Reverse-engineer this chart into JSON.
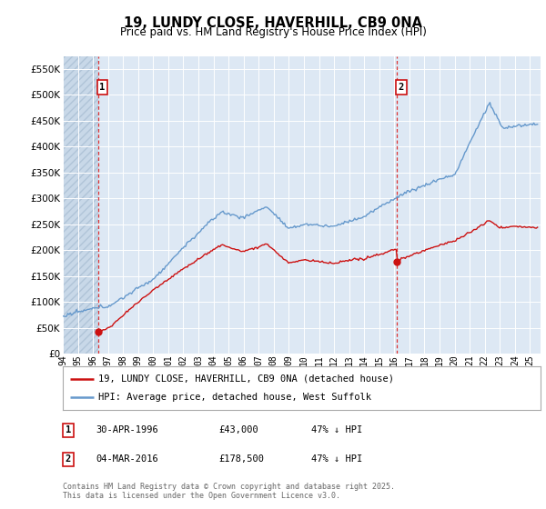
{
  "title": "19, LUNDY CLOSE, HAVERHILL, CB9 0NA",
  "subtitle": "Price paid vs. HM Land Registry's House Price Index (HPI)",
  "ylim": [
    0,
    575000
  ],
  "xlim_start": 1994.0,
  "xlim_end": 2025.7,
  "yticks": [
    0,
    50000,
    100000,
    150000,
    200000,
    250000,
    300000,
    350000,
    400000,
    450000,
    500000,
    550000
  ],
  "ytick_labels": [
    "£0",
    "£50K",
    "£100K",
    "£150K",
    "£200K",
    "£250K",
    "£300K",
    "£350K",
    "£400K",
    "£450K",
    "£500K",
    "£550K"
  ],
  "hpi_color": "#6699cc",
  "price_color": "#cc1111",
  "purchase1_x": 1996.33,
  "purchase1_y": 43000,
  "purchase2_x": 2016.17,
  "purchase2_y": 178500,
  "vline1_x": 1996.33,
  "vline2_x": 2016.17,
  "legend_line1": "19, LUNDY CLOSE, HAVERHILL, CB9 0NA (detached house)",
  "legend_line2": "HPI: Average price, detached house, West Suffolk",
  "table_rows": [
    {
      "num": "1",
      "date": "30-APR-1996",
      "price": "£43,000",
      "pct": "47% ↓ HPI"
    },
    {
      "num": "2",
      "date": "04-MAR-2016",
      "price": "£178,500",
      "pct": "47% ↓ HPI"
    }
  ],
  "footnote": "Contains HM Land Registry data © Crown copyright and database right 2025.\nThis data is licensed under the Open Government Licence v3.0.",
  "bg_color": "#ffffff",
  "plot_bg_color": "#dde8f4",
  "grid_color": "#ffffff",
  "hatch_bg_color": "#c8d8e8"
}
